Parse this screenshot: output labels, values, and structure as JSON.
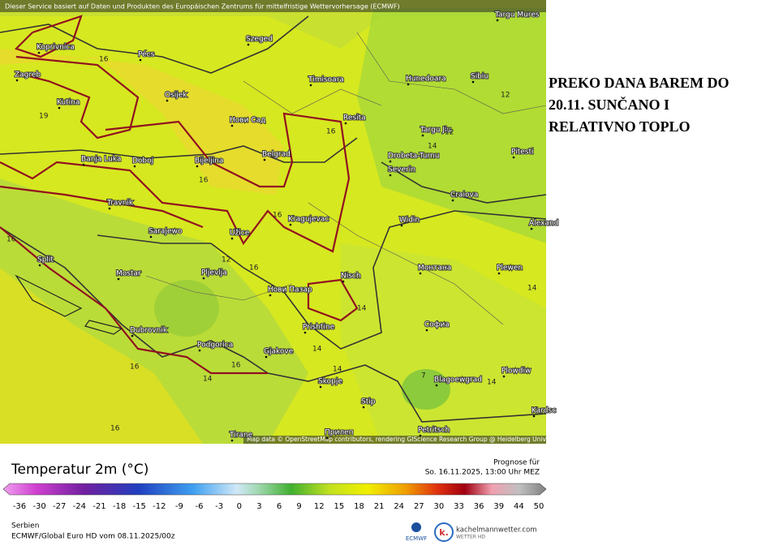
{
  "header": {
    "notice": "Dieser Service basiert auf Daten und Produkten des Europäischen Zentrums für mittelfristige Wettervorhersage (ECMWF)"
  },
  "map": {
    "cities": [
      "Targu Mures",
      "Szeged",
      "Koprivnica",
      "Pécs",
      "Zagreb",
      "Osijek",
      "Timisoara",
      "Hunedoara",
      "Sibiu",
      "Kutina",
      "Нови Сад",
      "Resita",
      "Targu Jiu",
      "Pitesti",
      "Banja Luka",
      "Doboj",
      "Bijeljina",
      "Belgrad",
      "Drobeta-Turnu",
      "Severin",
      "Travnik",
      "Craiova",
      "Kragujevac",
      "Widin",
      "Alexand",
      "Sarajewo",
      "Užice",
      "Split",
      "Mostar",
      "Pljevlja",
      "Монтана",
      "Plewen",
      "Nisch",
      "Нови Пазар",
      "Dubrovnik",
      "Prishtine",
      "Софиа",
      "Podgorica",
      "Gjakove",
      "Plowdiw",
      "Skopje",
      "Blagoewgrad",
      "Stip",
      "Tirane",
      "Прилеп",
      "Petritsch",
      "Kardsc"
    ],
    "contour_labels": [
      16,
      19,
      16,
      12,
      16,
      12,
      14,
      16,
      16,
      12,
      16,
      14,
      14,
      16,
      14,
      14,
      16,
      14,
      7,
      14,
      16,
      16
    ],
    "attribution": "Map data © OpenStreetMap contributors, rendering GIScience Research Group @ Heidelberg University"
  },
  "side_text": [
    "PREKO DANA BAREM DO",
    "20.11. SUNČANO I",
    "RELATIVNO TOPLO"
  ],
  "legend": {
    "title": "Temperatur 2m (°C)",
    "forecast_label": "Prognose für",
    "forecast_time": "So. 16.11.2025, 13:00 Uhr MEZ",
    "ticks": [
      -36,
      -30,
      -27,
      -24,
      -21,
      -18,
      -15,
      -12,
      -9,
      -6,
      -3,
      0,
      3,
      6,
      9,
      12,
      15,
      18,
      21,
      24,
      27,
      30,
      33,
      36,
      39,
      44,
      50
    ]
  },
  "footer": {
    "region": "Serbien",
    "model": "ECMWF/Global Euro HD vom  08.11.2025/00z",
    "ecmwf": "ECMWF",
    "brand": "kachelmannwetter.com",
    "brand_sub": "WETTER HD"
  }
}
